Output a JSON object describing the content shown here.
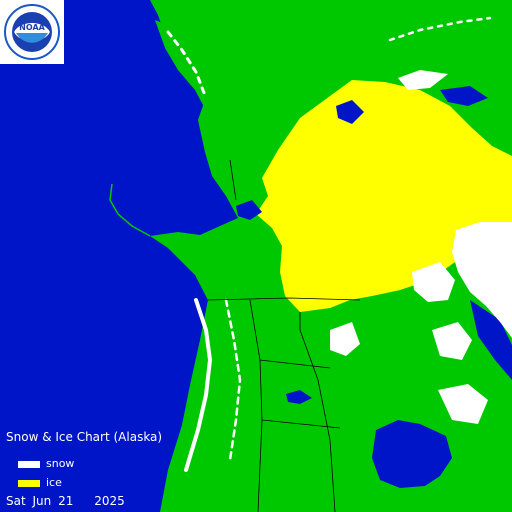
{
  "logo": {
    "text": "NOAA",
    "ring_text": "NATIONAL OCEANIC AND ATMOSPHERIC ADMINISTRATION"
  },
  "chart_title": "Snow & Ice Chart (Alaska)",
  "legend": [
    {
      "label": "snow",
      "color": "#ffffff"
    },
    {
      "label": "ice",
      "color": "#ffff00"
    }
  ],
  "date": {
    "weekday": "Sat",
    "month_day": "Jun 21",
    "year": "2025"
  },
  "colors": {
    "ocean": "#0015c8",
    "land": "#00c800",
    "snow": "#ffffff",
    "ice": "#ffff00",
    "borders": "#000000"
  }
}
